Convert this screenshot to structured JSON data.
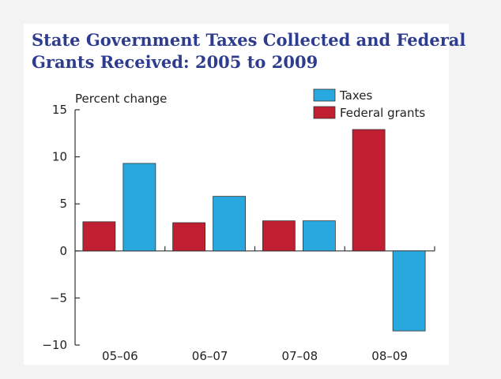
{
  "chart_data": {
    "type": "bar",
    "title": "State Government Taxes Collected and Federal Grants Received: 2005 to 2009",
    "y_label": "Percent change",
    "categories": [
      "05–06",
      "06–07",
      "07–08",
      "08–09"
    ],
    "series": [
      {
        "name": "Taxes",
        "color": "#29a8df",
        "values": [
          9.3,
          5.8,
          3.2,
          -8.5
        ]
      },
      {
        "name": "Federal grants",
        "color": "#c01f32",
        "values": [
          3.1,
          3.0,
          3.2,
          12.9
        ]
      }
    ],
    "ylim": [
      -10,
      15
    ],
    "yticks": [
      {
        "value": -10,
        "label": "−10"
      },
      {
        "value": -5,
        "label": "−5"
      },
      0,
      5,
      10,
      15
    ],
    "legend": "top-right"
  }
}
